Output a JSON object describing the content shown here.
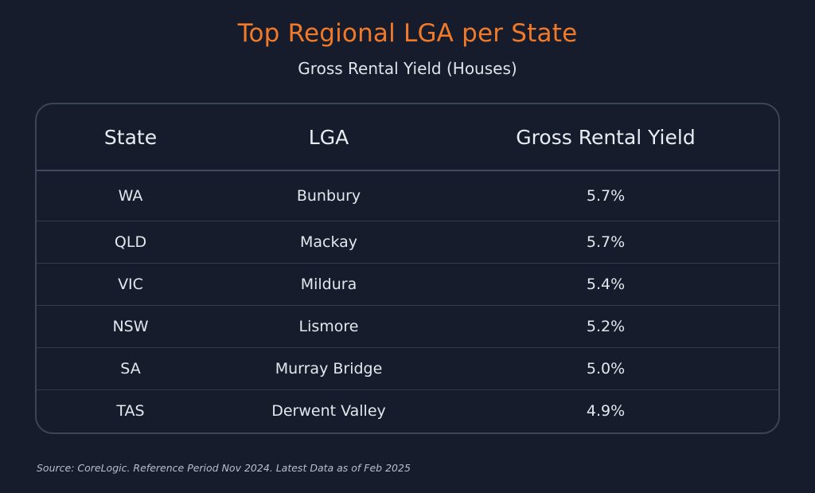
{
  "chart_data": {
    "type": "table",
    "title": "Top Regional LGA per State",
    "subtitle": "Gross Rental Yield (Houses)",
    "columns": [
      "State",
      "LGA",
      "Gross Rental Yield"
    ],
    "rows": [
      {
        "state": "WA",
        "lga": "Bunbury",
        "yield": "5.7%"
      },
      {
        "state": "QLD",
        "lga": "Mackay",
        "yield": "5.7%"
      },
      {
        "state": "VIC",
        "lga": "Mildura",
        "yield": "5.4%"
      },
      {
        "state": "NSW",
        "lga": "Lismore",
        "yield": "5.2%"
      },
      {
        "state": "SA",
        "lga": "Murray Bridge",
        "yield": "5.0%"
      },
      {
        "state": "TAS",
        "lga": "Derwent Valley",
        "yield": "4.9%"
      }
    ],
    "source": "Source: CoreLogic. Reference Period Nov 2024. Latest Data as of Feb 2025"
  },
  "colors": {
    "background": "#161c2c",
    "title": "#f07a2a",
    "border": "#3a4558",
    "text": "#e9ecf1"
  }
}
